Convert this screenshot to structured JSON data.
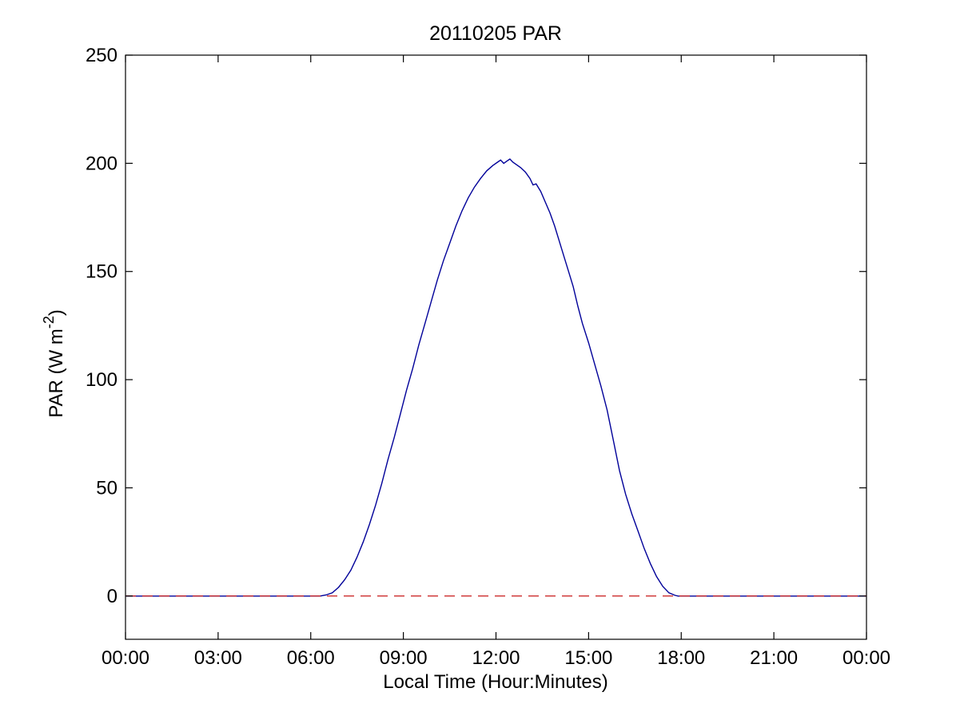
{
  "figure": {
    "title": "20110205 PAR",
    "xlabel": "Local Time (Hour:Minutes)",
    "ylabel_prefix": "PAR (W m",
    "ylabel_sup": "-2",
    "ylabel_suffix": ")"
  },
  "colors": {
    "par_line": "#000099",
    "zero_line": "#CC2A2A",
    "axis": "#000000",
    "background": "#ffffff"
  },
  "chart_data": {
    "type": "line",
    "title": "20110205 PAR",
    "xlabel": "Local Time (Hour:Minutes)",
    "ylabel": "PAR (W m^-2)",
    "xlim_hours": [
      0,
      24
    ],
    "ylim": [
      -20,
      250
    ],
    "grid": false,
    "legend": "none",
    "x_tick_hours": [
      0,
      3,
      6,
      9,
      12,
      15,
      18,
      21,
      24
    ],
    "x_tick_labels": [
      "00:00",
      "03:00",
      "06:00",
      "09:00",
      "12:00",
      "15:00",
      "18:00",
      "21:00",
      "00:00"
    ],
    "y_ticks": [
      0,
      50,
      100,
      150,
      200,
      250
    ],
    "series": [
      {
        "name": "PAR",
        "style": "solid",
        "color": "#000099",
        "points": [
          [
            0,
            0
          ],
          [
            1,
            0
          ],
          [
            2,
            0
          ],
          [
            3,
            0
          ],
          [
            4,
            0
          ],
          [
            5,
            0
          ],
          [
            5.5,
            0
          ],
          [
            6,
            0
          ],
          [
            6.3,
            0
          ],
          [
            6.5,
            0.5
          ],
          [
            6.7,
            1.5
          ],
          [
            6.9,
            4
          ],
          [
            7.1,
            7.5
          ],
          [
            7.3,
            12
          ],
          [
            7.5,
            18
          ],
          [
            7.7,
            25
          ],
          [
            7.9,
            33
          ],
          [
            8.1,
            42
          ],
          [
            8.3,
            52
          ],
          [
            8.5,
            63
          ],
          [
            8.7,
            73
          ],
          [
            8.9,
            84
          ],
          [
            9.1,
            95
          ],
          [
            9.3,
            105
          ],
          [
            9.5,
            116
          ],
          [
            9.7,
            126
          ],
          [
            9.9,
            136
          ],
          [
            10.1,
            146
          ],
          [
            10.3,
            155
          ],
          [
            10.5,
            163
          ],
          [
            10.7,
            171
          ],
          [
            10.9,
            178
          ],
          [
            11.1,
            184
          ],
          [
            11.3,
            189
          ],
          [
            11.5,
            193
          ],
          [
            11.7,
            196.5
          ],
          [
            11.9,
            199
          ],
          [
            12.05,
            200.5
          ],
          [
            12.15,
            201.5
          ],
          [
            12.25,
            200
          ],
          [
            12.35,
            201
          ],
          [
            12.45,
            202
          ],
          [
            12.55,
            200.5
          ],
          [
            12.65,
            199.5
          ],
          [
            12.8,
            198
          ],
          [
            12.95,
            196
          ],
          [
            13.1,
            193
          ],
          [
            13.2,
            190
          ],
          [
            13.3,
            190.5
          ],
          [
            13.45,
            187
          ],
          [
            13.6,
            182
          ],
          [
            13.75,
            177
          ],
          [
            13.9,
            171
          ],
          [
            14.05,
            164
          ],
          [
            14.2,
            157
          ],
          [
            14.35,
            150
          ],
          [
            14.5,
            143
          ],
          [
            14.65,
            134
          ],
          [
            14.8,
            126
          ],
          [
            15.0,
            117
          ],
          [
            15.2,
            107
          ],
          [
            15.4,
            97
          ],
          [
            15.6,
            86
          ],
          [
            15.8,
            72
          ],
          [
            16.0,
            58
          ],
          [
            16.2,
            47
          ],
          [
            16.4,
            38
          ],
          [
            16.6,
            30
          ],
          [
            16.8,
            22
          ],
          [
            17.0,
            15
          ],
          [
            17.2,
            9
          ],
          [
            17.4,
            4.5
          ],
          [
            17.6,
            1.5
          ],
          [
            17.8,
            0.3
          ],
          [
            17.9,
            0
          ],
          [
            18,
            0
          ],
          [
            19,
            0
          ],
          [
            20,
            0
          ],
          [
            21,
            0
          ],
          [
            22,
            0
          ],
          [
            23,
            0
          ],
          [
            24,
            0
          ]
        ]
      },
      {
        "name": "zero-reference",
        "style": "dashed",
        "color": "#CC2A2A",
        "points": [
          [
            0,
            0
          ],
          [
            24,
            0
          ]
        ]
      }
    ]
  }
}
